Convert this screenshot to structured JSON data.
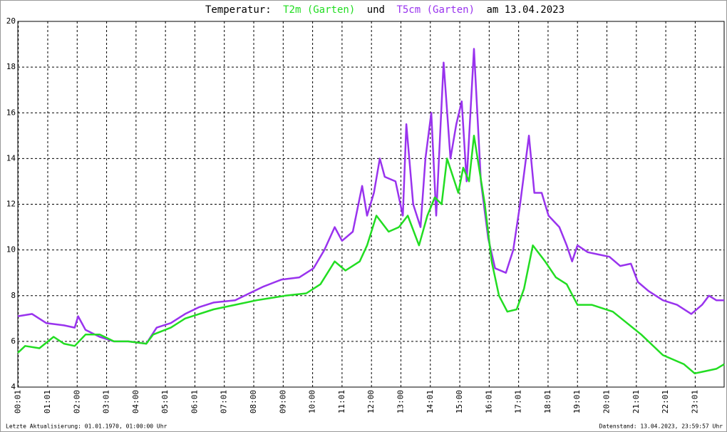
{
  "chart_data": {
    "type": "line",
    "title_parts": [
      {
        "text": "Temperatur:",
        "color": "#000000"
      },
      {
        "text": "T2m (Garten)",
        "color": "#22dd22"
      },
      {
        "text": "und",
        "color": "#000000"
      },
      {
        "text": "T5cm (Garten)",
        "color": "#9933ee"
      },
      {
        "text": "am 13.04.2023",
        "color": "#000000"
      }
    ],
    "footer_left": "Letzte Aktualisierung: 01.01.1970, 01:00:00 Uhr",
    "footer_right": "Datenstand: 13.04.2023, 23:59:57 Uhr",
    "xlim": [
      0,
      1440
    ],
    "ylim": [
      4,
      20
    ],
    "yticks": [
      4,
      6,
      8,
      10,
      12,
      14,
      16,
      18,
      20
    ],
    "xticks": [
      {
        "value": 1,
        "label": "00:01"
      },
      {
        "value": 61,
        "label": "01:01"
      },
      {
        "value": 121,
        "label": "02:00"
      },
      {
        "value": 181,
        "label": "03:01"
      },
      {
        "value": 241,
        "label": "04:00"
      },
      {
        "value": 301,
        "label": "05:01"
      },
      {
        "value": 361,
        "label": "06:01"
      },
      {
        "value": 421,
        "label": "07:01"
      },
      {
        "value": 481,
        "label": "08:00"
      },
      {
        "value": 541,
        "label": "09:00"
      },
      {
        "value": 601,
        "label": "10:00"
      },
      {
        "value": 661,
        "label": "11:01"
      },
      {
        "value": 721,
        "label": "12:00"
      },
      {
        "value": 781,
        "label": "13:00"
      },
      {
        "value": 841,
        "label": "14:01"
      },
      {
        "value": 901,
        "label": "15:00"
      },
      {
        "value": 961,
        "label": "16:01"
      },
      {
        "value": 1021,
        "label": "17:01"
      },
      {
        "value": 1081,
        "label": "18:01"
      },
      {
        "value": 1141,
        "label": "19:01"
      },
      {
        "value": 1201,
        "label": "20:01"
      },
      {
        "value": 1261,
        "label": "21:01"
      },
      {
        "value": 1321,
        "label": "22:01"
      },
      {
        "value": 1381,
        "label": "23:01"
      }
    ],
    "grid": true,
    "series": [
      {
        "name": "T5cm (Garten)",
        "color": "#9933ee",
        "x": [
          0,
          29,
          58,
          94,
          116,
          123,
          138,
          167,
          196,
          225,
          262,
          283,
          312,
          341,
          370,
          399,
          443,
          472,
          501,
          537,
          574,
          603,
          625,
          646,
          661,
          683,
          702,
          712,
          726,
          738,
          748,
          770,
          785,
          792,
          806,
          821,
          831,
          843,
          853,
          868,
          882,
          894,
          905,
          915,
          930,
          944,
          959,
          973,
          995,
          1010,
          1024,
          1042,
          1053,
          1068,
          1082,
          1104,
          1119,
          1130,
          1141,
          1162,
          1184,
          1206,
          1228,
          1250,
          1264,
          1286,
          1315,
          1344,
          1373,
          1395,
          1409,
          1424,
          1440
        ],
        "values": [
          7.1,
          7.2,
          6.8,
          6.7,
          6.6,
          7.1,
          6.5,
          6.2,
          6.0,
          6.0,
          5.9,
          6.6,
          6.8,
          7.2,
          7.5,
          7.7,
          7.8,
          8.1,
          8.4,
          8.7,
          8.8,
          9.2,
          10.0,
          11.0,
          10.4,
          10.8,
          12.8,
          11.5,
          12.5,
          14.0,
          13.2,
          13.0,
          11.5,
          15.5,
          12.0,
          11.0,
          14.0,
          16.0,
          11.5,
          18.2,
          14.0,
          15.5,
          16.5,
          13.0,
          18.8,
          13.0,
          10.5,
          9.2,
          9.0,
          10.0,
          12.0,
          15.0,
          12.5,
          12.5,
          11.5,
          11.0,
          10.2,
          9.5,
          10.2,
          9.9,
          9.8,
          9.7,
          9.3,
          9.4,
          8.6,
          8.2,
          7.8,
          7.6,
          7.2,
          7.6,
          8.0,
          7.8,
          7.8
        ]
      },
      {
        "name": "T2m (Garten)",
        "color": "#22dd22",
        "x": [
          0,
          15,
          44,
          73,
          94,
          116,
          138,
          167,
          196,
          225,
          262,
          276,
          312,
          341,
          399,
          443,
          487,
          545,
          588,
          617,
          646,
          668,
          697,
          712,
          731,
          756,
          777,
          795,
          818,
          835,
          850,
          864,
          875,
          898,
          908,
          920,
          930,
          952,
          966,
          981,
          998,
          1017,
          1032,
          1050,
          1075,
          1097,
          1119,
          1141,
          1170,
          1213,
          1242,
          1271,
          1315,
          1358,
          1380,
          1402,
          1424,
          1440
        ],
        "values": [
          5.5,
          5.8,
          5.7,
          6.2,
          5.9,
          5.8,
          6.3,
          6.3,
          6.0,
          6.0,
          5.9,
          6.3,
          6.6,
          7.0,
          7.4,
          7.6,
          7.8,
          8.0,
          8.1,
          8.5,
          9.5,
          9.1,
          9.5,
          10.2,
          11.5,
          10.8,
          11.0,
          11.5,
          10.2,
          11.5,
          12.3,
          12.0,
          14.0,
          12.5,
          13.6,
          13.0,
          15.0,
          12.0,
          9.5,
          8.0,
          7.3,
          7.4,
          8.3,
          10.2,
          9.5,
          8.8,
          8.5,
          7.6,
          7.6,
          7.3,
          6.8,
          6.3,
          5.4,
          5.0,
          4.6,
          4.7,
          4.8,
          5.0
        ]
      }
    ]
  }
}
